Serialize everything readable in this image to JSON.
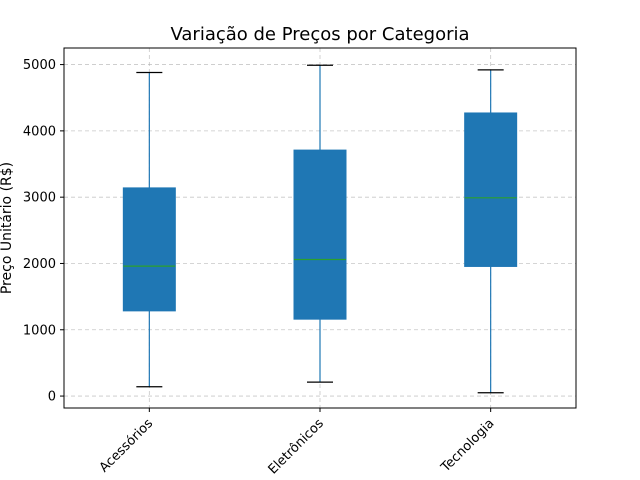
{
  "chart_data": {
    "type": "box",
    "title": "Variação de Preços por Categoria",
    "xlabel": "",
    "ylabel": "Preço Unitário (R$)",
    "ylim": [
      -180,
      5250
    ],
    "yticks": [
      0,
      1000,
      2000,
      3000,
      4000,
      5000
    ],
    "grid": true,
    "legend": "none",
    "categories": [
      "Acessórios",
      "Eletrônicos",
      "Tecnologia"
    ],
    "boxes": [
      {
        "category": "Acessórios",
        "whisker_low": 140,
        "q1": 1285,
        "median": 1960,
        "q3": 3140,
        "whisker_high": 4880
      },
      {
        "category": "Eletrônicos",
        "whisker_low": 210,
        "q1": 1160,
        "median": 2060,
        "q3": 3710,
        "whisker_high": 4990
      },
      {
        "category": "Tecnologia",
        "whisker_low": 50,
        "q1": 1955,
        "median": 2990,
        "q3": 4270,
        "whisker_high": 4920
      }
    ],
    "colors": {
      "box": "#1f77b4",
      "median": "#2ca02c",
      "whisker": "#1f77b4",
      "cap": "#000000",
      "grid": "#b0b0b0"
    }
  }
}
